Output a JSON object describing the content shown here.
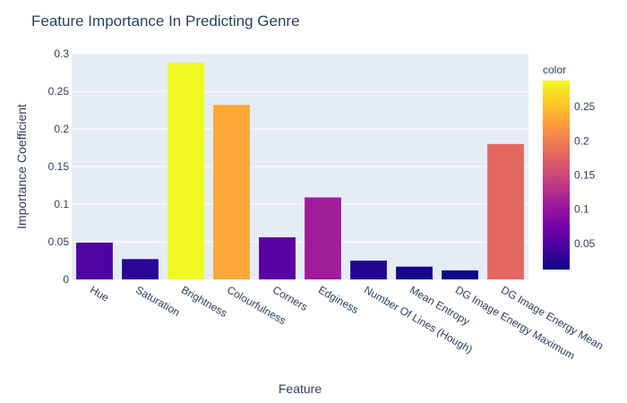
{
  "chart_data": {
    "type": "bar",
    "title": "Feature Importance In Predicting Genre",
    "xlabel": "Feature",
    "ylabel": "Importance Coefficient",
    "categories": [
      "Hue",
      "Saturation",
      "Brightness",
      "Colourfulness",
      "Corners",
      "Edginess",
      "Number Of Lines (Hough)",
      "Mean Entropy",
      "DG Image Energy Maximum",
      "DG Image Energy Mean"
    ],
    "values": [
      0.049,
      0.027,
      0.288,
      0.232,
      0.056,
      0.109,
      0.025,
      0.017,
      0.012,
      0.18
    ],
    "ylim": [
      0,
      0.3
    ],
    "yticks": [
      0,
      0.05,
      0.1,
      0.15,
      0.2,
      0.25,
      0.3
    ],
    "ytick_labels": [
      "0",
      "0.05",
      "0.1",
      "0.15",
      "0.2",
      "0.25",
      "0.3"
    ],
    "grid": true,
    "colorbar": {
      "title": "color",
      "range": [
        0.012,
        0.288
      ],
      "ticks": [
        0.05,
        0.1,
        0.15,
        0.2,
        0.25
      ],
      "tick_labels": [
        "0.05",
        "0.1",
        "0.15",
        "0.2",
        "0.25"
      ],
      "colorscale": [
        "#0d0887",
        "#46039f",
        "#7201a8",
        "#9c179e",
        "#bd3786",
        "#d8576b",
        "#ed7953",
        "#fb9f3a",
        "#fdca26",
        "#f0f921"
      ]
    },
    "colors": {
      "plot_background": "#e5ecf6",
      "gridline": "#ffffff",
      "text": "#2a3f5f"
    }
  }
}
